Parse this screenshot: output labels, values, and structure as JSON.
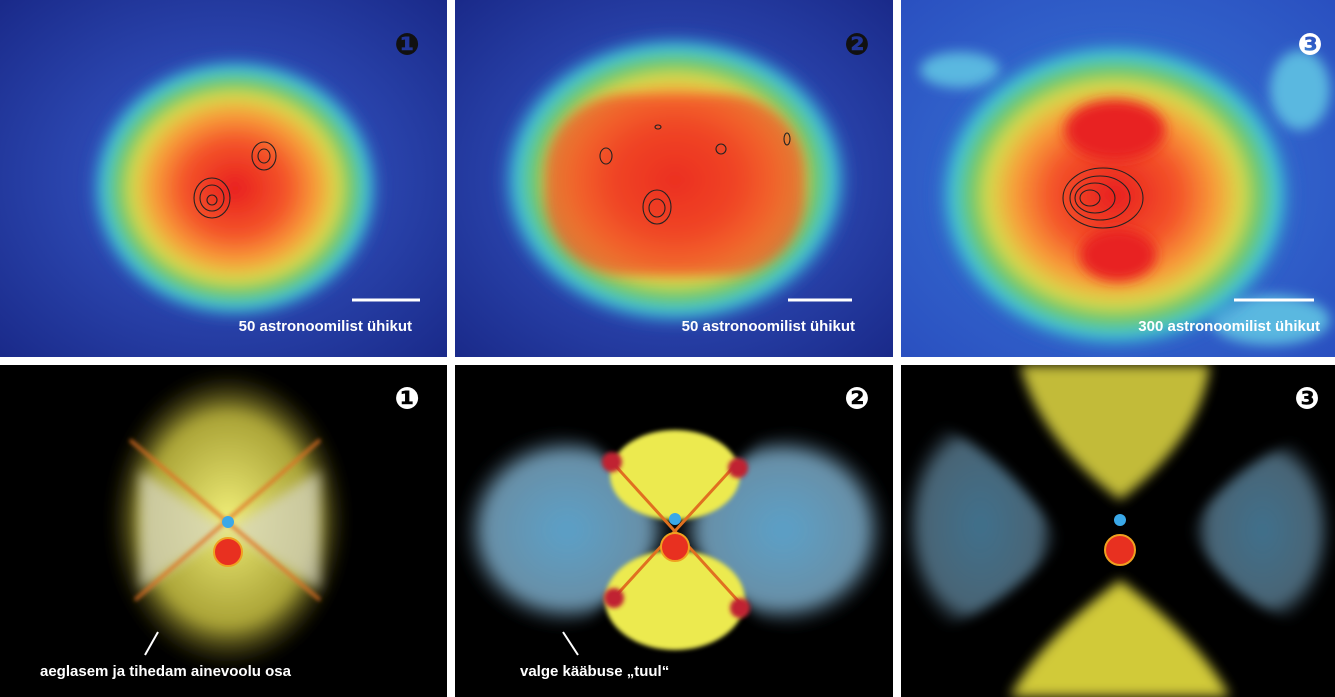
{
  "panels_top": [
    {
      "number": "❶",
      "scale_label": "50 astronoomilist ühikut"
    },
    {
      "number": "❷",
      "scale_label": "50 astronoomilist ühikut"
    },
    {
      "number": "❸",
      "scale_label": "300 astronoomilist ühikut"
    }
  ],
  "panels_bottom": [
    {
      "number": "❶",
      "caption": "aeglasem ja tihedam ainevoolu osa"
    },
    {
      "number": "❷",
      "caption": "valge kääbuse „tuul“"
    },
    {
      "number": "❸"
    }
  ]
}
